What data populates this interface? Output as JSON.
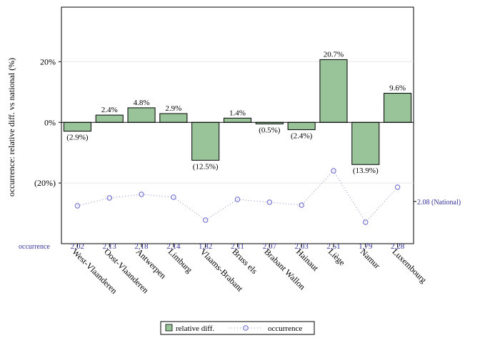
{
  "chart_data": {
    "type": "bar",
    "categories": [
      "West-Vlaanderen",
      "Oost-Vlaanderen",
      "Antwerpen",
      "Limburg",
      "Vlaams-Brabant",
      "Bruss els",
      "Brabant Wallon",
      "Hainaut",
      "Liège",
      "Namur",
      "Luxembourg"
    ],
    "series": [
      {
        "name": "relative diff.",
        "type": "bar",
        "values": [
          -2.9,
          2.4,
          4.8,
          2.9,
          -12.5,
          1.4,
          -0.5,
          -2.4,
          20.7,
          -13.9,
          9.6
        ],
        "labels": [
          "(2.9%)",
          "2.4%",
          "4.8%",
          "2.9%",
          "(12.5%)",
          "1.4%",
          "(0.5%)",
          "(2.4%)",
          "20.7%",
          "(13.9%)",
          "9.6%"
        ],
        "color": "#99c499"
      },
      {
        "name": "occurrence",
        "type": "line",
        "values": [
          2.02,
          2.13,
          2.18,
          2.14,
          1.82,
          2.11,
          2.07,
          2.03,
          2.51,
          1.79,
          2.28
        ],
        "labels": [
          "2,02",
          "2,13",
          "2,18",
          "2,14",
          "1,82",
          "2,11",
          "2,07",
          "2,03",
          "2,51",
          "1,79",
          "2,28"
        ],
        "color": "#6666cc"
      }
    ],
    "ylabel": "occurrence: relative diff. vs national (%)",
    "yticks": [
      {
        "value": 20,
        "label": "20%"
      },
      {
        "value": 0,
        "label": "0%"
      },
      {
        "value": -20,
        "label": "(20%)"
      }
    ],
    "ylim": [
      -40,
      38
    ],
    "occurrence_range": [
      1.6,
      2.6
    ],
    "occurrence_row_label": "occurrence",
    "national": {
      "value": 2.08,
      "label": "2.08 (National)"
    },
    "legend": {
      "position": "bottom-center",
      "entries": [
        {
          "name": "relative diff.",
          "style": "bar"
        },
        {
          "name": "occurrence",
          "style": "dotted-circle"
        }
      ]
    },
    "grid": true
  }
}
